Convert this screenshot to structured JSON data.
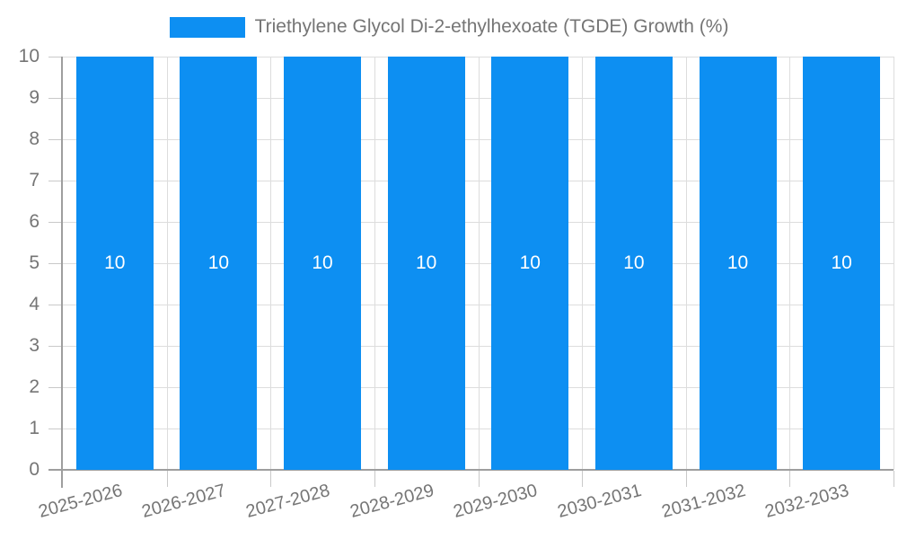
{
  "chart": {
    "legend": {
      "label": "Triethylene Glycol Di-2-ethylhexoate (TGDE) Growth (%)"
    }
  },
  "chart_data": {
    "type": "bar",
    "title": "",
    "categories": [
      "2025-2026",
      "2026-2027",
      "2027-2028",
      "2028-2029",
      "2029-2030",
      "2030-2031",
      "2031-2032",
      "2032-2033"
    ],
    "series": [
      {
        "name": "Triethylene Glycol Di-2-ethylhexoate (TGDE) Growth (%)",
        "values": [
          10,
          10,
          10,
          10,
          10,
          10,
          10,
          10
        ],
        "color": "#0d8ff2"
      }
    ],
    "bar_value_labels": [
      "10",
      "10",
      "10",
      "10",
      "10",
      "10",
      "10",
      "10"
    ],
    "ylabel": "",
    "xlabel": "",
    "ylim": [
      0,
      10
    ],
    "yticks": [
      0,
      1,
      2,
      3,
      4,
      5,
      6,
      7,
      8,
      9,
      10
    ],
    "grid": true,
    "legend_position": "top-center",
    "x_tick_rotation_deg": -15,
    "colors": {
      "bar": "#0d8ff2",
      "bar_value_label": "#ffffff",
      "axis_line": "#9e9e9e",
      "gridline": "#dddddd",
      "tick": "#c9c9c9",
      "text": "#757575"
    }
  }
}
